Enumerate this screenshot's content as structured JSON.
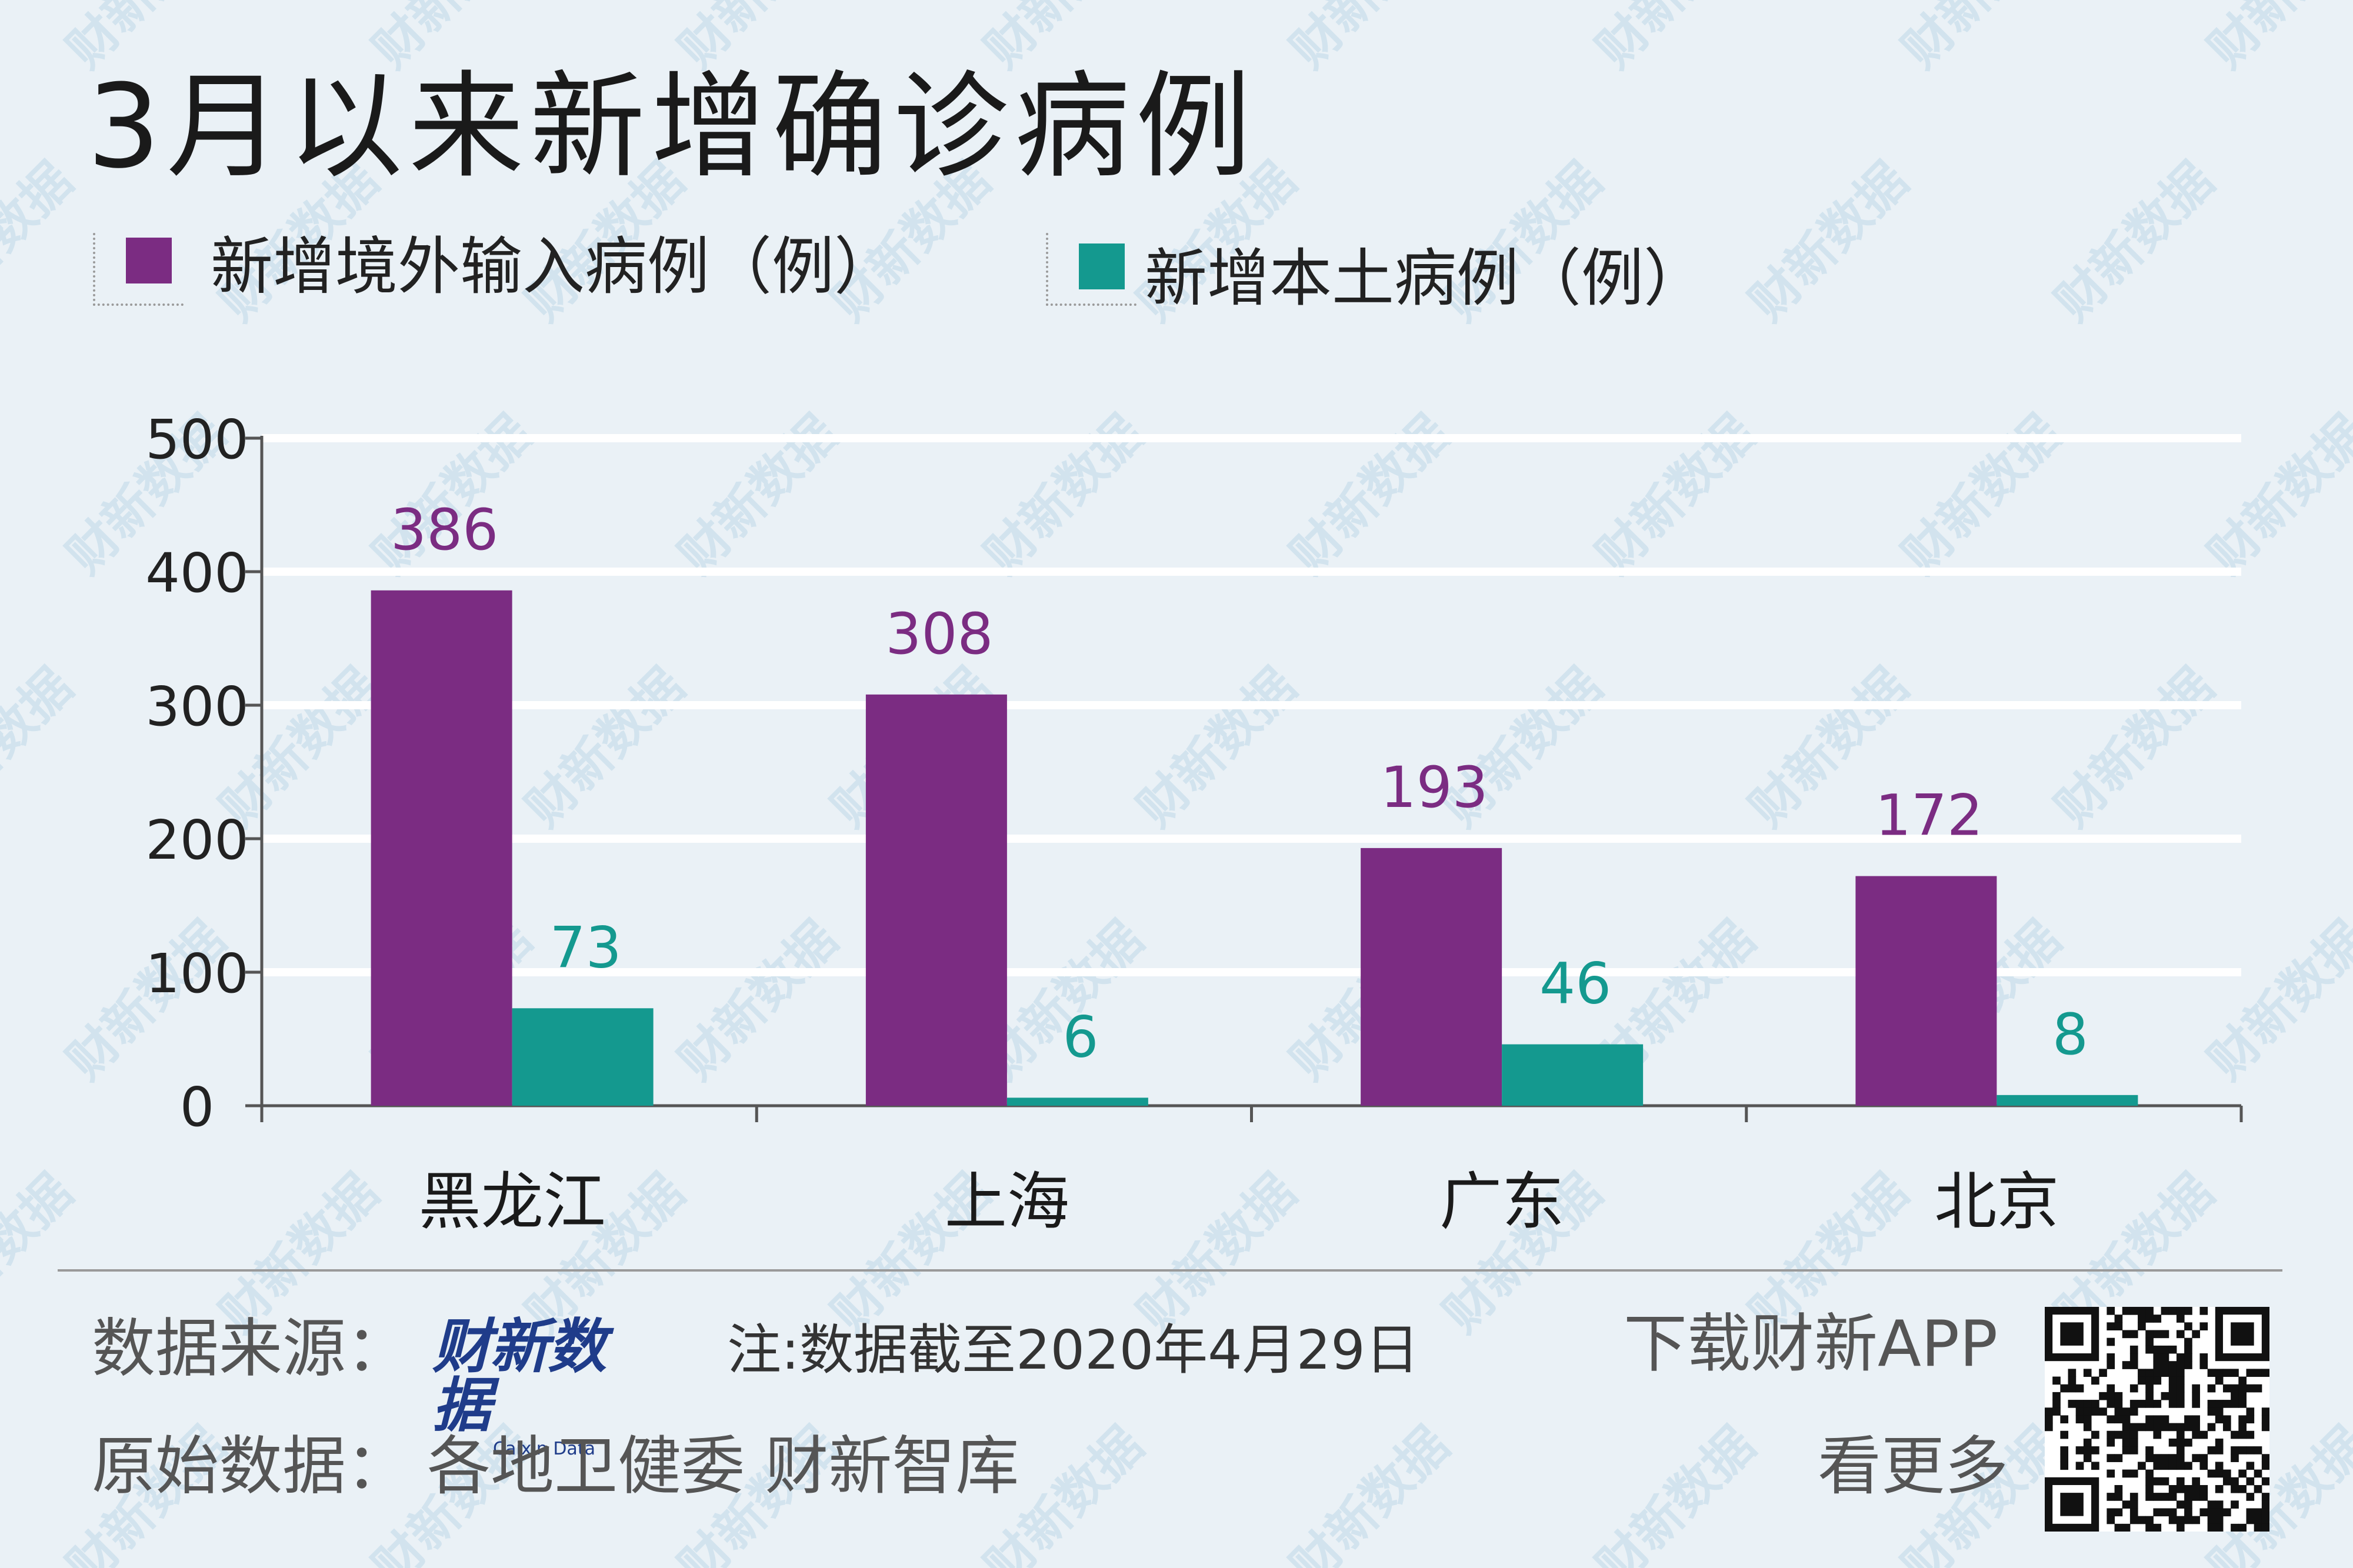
{
  "title": "3月以来新增确诊病例",
  "legend": [
    {
      "label": "新增境外输入病例（例）",
      "color": "#7b2c82"
    },
    {
      "label": "新增本土病例（例）",
      "color": "#14998f"
    }
  ],
  "chart_data": {
    "type": "bar",
    "categories": [
      "黑龙江",
      "上海",
      "广东",
      "北京"
    ],
    "series": [
      {
        "name": "新增境外输入病例（例）",
        "values": [
          386,
          308,
          193,
          172
        ],
        "color": "#7b2c82"
      },
      {
        "name": "新增本土病例（例）",
        "values": [
          73,
          6,
          46,
          8
        ],
        "color": "#14998f"
      }
    ],
    "ylim": [
      0,
      500
    ],
    "yticks": [
      "0",
      "100",
      "200",
      "300",
      "400",
      "500"
    ],
    "grid": true
  },
  "footer": {
    "source_label": "数据来源：",
    "source_logo": "财新数据",
    "source_logo_sub": "Caixin Data",
    "note": "注:数据截至2020年4月29日",
    "original_label": "原始数据：",
    "original_value": "各地卫健委 财新智库",
    "app_line1": "下载财新APP",
    "app_line2": "看更多"
  },
  "watermark_text": "财新数据"
}
